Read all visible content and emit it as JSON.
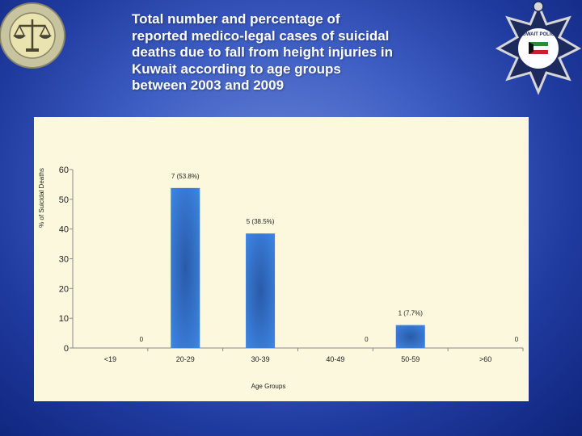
{
  "title_lines": [
    "Total number and percentage of",
    "reported medico-legal cases of suicidal",
    "deaths due to fall from height injuries in",
    "Kuwait according to age groups",
    "between  2003 and 2009"
  ],
  "logos": {
    "left": {
      "name": "scales-of-justice-emblem",
      "color": "#e9e3b0"
    },
    "right": {
      "name": "kuwait-police-star-badge",
      "text": "KUWAIT POLICE",
      "color": "#1c2a5e"
    }
  },
  "colors": {
    "bar": "#2e6fd0",
    "bar_light": "#5a96ea",
    "plot_background": "#fbf8dd"
  },
  "chart_data": {
    "type": "bar",
    "title": "",
    "xlabel": "Age Groups",
    "ylabel": "% of Suicidal Deaths",
    "ylim": [
      0,
      60
    ],
    "yticks": [
      0,
      10,
      20,
      30,
      40,
      50,
      60
    ],
    "categories": [
      "<19",
      "20-29",
      "30-39",
      "40-49",
      "50-59",
      ">60"
    ],
    "values": [
      0,
      53.8,
      38.5,
      0,
      7.7,
      0
    ],
    "data_labels": [
      "0",
      "7 (53.8%)",
      "5 (38.5%)",
      "0",
      "1 (7.7%)",
      "0"
    ],
    "grid": false,
    "legend": "none"
  }
}
